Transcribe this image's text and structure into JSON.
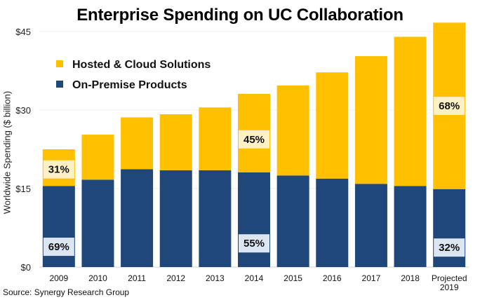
{
  "chart_data": {
    "type": "bar",
    "stacked": true,
    "title": "Enterprise Spending on UC Collaboration",
    "xlabel": "",
    "ylabel": "Worldwide Spending ($ billion)",
    "ylim": [
      0,
      45
    ],
    "yticks": [
      "$0",
      "$15",
      "$30",
      "$45"
    ],
    "ytick_values": [
      0,
      15,
      30,
      45
    ],
    "grid": true,
    "legend_position": "top-left",
    "categories": [
      "2009",
      "2010",
      "2011",
      "2012",
      "2013",
      "2014",
      "2015",
      "2016",
      "2017",
      "2018",
      "Projected 2019"
    ],
    "series": [
      {
        "name": "On-Premise Products",
        "color": "#1f477a",
        "values": [
          15.5,
          16.7,
          18.7,
          18.5,
          18.5,
          18.1,
          17.5,
          16.9,
          15.9,
          15.5,
          14.9
        ]
      },
      {
        "name": "Hosted & Cloud Solutions",
        "color": "#ffc000",
        "values": [
          7.0,
          8.6,
          9.9,
          10.7,
          12.0,
          15.0,
          17.2,
          20.3,
          24.4,
          28.5,
          31.8
        ]
      }
    ],
    "annotations": [
      {
        "category": "2009",
        "series": "Hosted & Cloud Solutions",
        "text": "31%"
      },
      {
        "category": "2009",
        "series": "On-Premise Products",
        "text": "69%"
      },
      {
        "category": "2014",
        "series": "Hosted & Cloud Solutions",
        "text": "45%"
      },
      {
        "category": "2014",
        "series": "On-Premise Products",
        "text": "55%"
      },
      {
        "category": "Projected 2019",
        "series": "Hosted & Cloud Solutions",
        "text": "68%"
      },
      {
        "category": "Projected 2019",
        "series": "On-Premise Products",
        "text": "32%"
      }
    ]
  },
  "source": "Source: Synergy Research Group"
}
